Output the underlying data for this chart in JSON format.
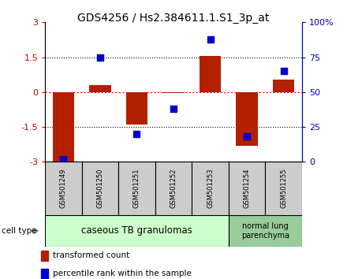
{
  "title": "GDS4256 / Hs2.384611.1.S1_3p_at",
  "samples": [
    "GSM501249",
    "GSM501250",
    "GSM501251",
    "GSM501252",
    "GSM501253",
    "GSM501254",
    "GSM501255"
  ],
  "transformed_counts": [
    -3.0,
    0.3,
    -1.4,
    -0.05,
    1.55,
    -2.3,
    0.55
  ],
  "percentile_ranks": [
    2.0,
    75.0,
    20.0,
    38.0,
    88.0,
    18.0,
    65.0
  ],
  "ylim_left": [
    -3,
    3
  ],
  "ylim_right": [
    0,
    100
  ],
  "yticks_left": [
    -3,
    -1.5,
    0,
    1.5,
    3
  ],
  "yticks_right": [
    0,
    25,
    50,
    75,
    100
  ],
  "ytick_labels_left": [
    "-3",
    "-1.5",
    "0",
    "1.5",
    "3"
  ],
  "ytick_labels_right": [
    "0",
    "25",
    "50",
    "75",
    "100%"
  ],
  "bar_color": "#b22000",
  "dot_color": "#0000cc",
  "bar_width": 0.6,
  "dot_size": 40,
  "sample_box_color": "#cccccc",
  "group1_box_color": "#ccffcc",
  "group2_box_color": "#99cc99",
  "group1_label": "caseous TB granulomas",
  "group2_label": "normal lung\nparenchyma",
  "legend_bar_label": "transformed count",
  "legend_dot_label": "percentile rank within the sample"
}
